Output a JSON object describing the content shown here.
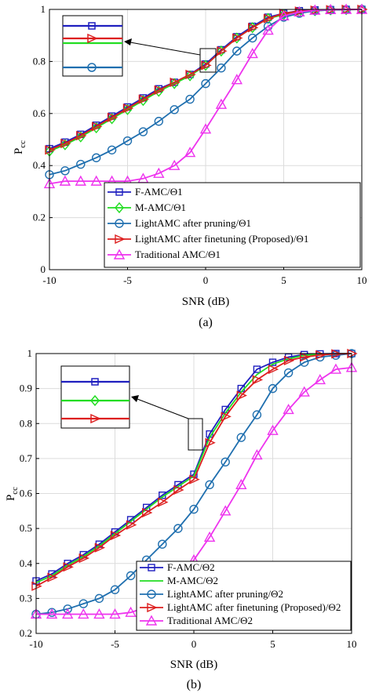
{
  "chart_data": [
    {
      "type": "line",
      "caption": "(a)",
      "xlabel": "SNR (dB)",
      "ylabel": "P",
      "ylabel_sub": "cc",
      "xlim": [
        -10,
        10
      ],
      "ylim": [
        0,
        1
      ],
      "xticks": [
        "-10",
        "-5",
        "0",
        "5",
        "10"
      ],
      "yticks": [
        "0",
        "0.2",
        "0.4",
        "0.6",
        "0.8",
        "1"
      ],
      "grid": true,
      "legend_position": "bottom-right",
      "x": [
        -10,
        -9,
        -8,
        -7,
        -6,
        -5,
        -4,
        -3,
        -2,
        -1,
        0,
        1,
        2,
        3,
        4,
        5,
        6,
        7,
        8,
        9,
        10
      ],
      "series": [
        {
          "name": "F-AMC/Θ1",
          "color": "#1f1fbf",
          "marker": "square",
          "values": [
            0.465,
            0.49,
            0.52,
            0.555,
            0.59,
            0.625,
            0.66,
            0.695,
            0.72,
            0.75,
            0.79,
            0.845,
            0.895,
            0.935,
            0.97,
            0.985,
            0.995,
            0.998,
            0.999,
            1.0,
            1.0
          ]
        },
        {
          "name": "M-AMC/Θ1",
          "color": "#22dd22",
          "marker": "diamond",
          "values": [
            0.455,
            0.48,
            0.51,
            0.545,
            0.58,
            0.615,
            0.65,
            0.685,
            0.715,
            0.745,
            0.785,
            0.84,
            0.89,
            0.93,
            0.965,
            0.98,
            0.99,
            0.995,
            0.998,
            0.999,
            1.0
          ]
        },
        {
          "name": "LightAMC after pruning/Θ1",
          "color": "#1f6faf",
          "marker": "circle",
          "values": [
            0.365,
            0.38,
            0.405,
            0.43,
            0.46,
            0.495,
            0.53,
            0.57,
            0.615,
            0.655,
            0.715,
            0.775,
            0.84,
            0.89,
            0.935,
            0.97,
            0.985,
            0.995,
            0.998,
            0.999,
            1.0
          ]
        },
        {
          "name": "LightAMC after finetuning (Proposed)/Θ1",
          "color": "#dd1f1f",
          "marker": "triangle-right",
          "values": [
            0.46,
            0.485,
            0.515,
            0.55,
            0.585,
            0.62,
            0.655,
            0.69,
            0.72,
            0.75,
            0.785,
            0.84,
            0.89,
            0.93,
            0.965,
            0.985,
            0.993,
            0.997,
            0.999,
            1.0,
            1.0
          ]
        },
        {
          "name": "Traditional AMC/Θ1",
          "color": "#ee33ee",
          "marker": "triangle-up",
          "values": [
            0.33,
            0.34,
            0.34,
            0.34,
            0.34,
            0.34,
            0.35,
            0.37,
            0.4,
            0.45,
            0.54,
            0.635,
            0.73,
            0.83,
            0.92,
            0.975,
            0.99,
            0.997,
            0.999,
            1.0,
            1.0
          ]
        }
      ]
    },
    {
      "type": "line",
      "caption": "(b)",
      "xlabel": "SNR (dB)",
      "ylabel": "P",
      "ylabel_sub": "cc",
      "xlim": [
        -10,
        10
      ],
      "ylim": [
        0.2,
        1
      ],
      "xticks": [
        "-10",
        "-5",
        "0",
        "5",
        "10"
      ],
      "yticks": [
        "0.2",
        "0.3",
        "0.4",
        "0.5",
        "0.6",
        "0.7",
        "0.8",
        "0.9",
        "1"
      ],
      "grid": true,
      "legend_position": "bottom-right",
      "x": [
        -10,
        -9,
        -8,
        -7,
        -6,
        -5,
        -4,
        -3,
        -2,
        -1,
        0,
        1,
        2,
        3,
        4,
        5,
        6,
        7,
        8,
        9,
        10
      ],
      "series": [
        {
          "name": "F-AMC/Θ2",
          "color": "#1f1fbf",
          "marker": "square",
          "values": [
            0.35,
            0.37,
            0.4,
            0.425,
            0.455,
            0.49,
            0.525,
            0.56,
            0.595,
            0.625,
            0.655,
            0.77,
            0.84,
            0.9,
            0.955,
            0.975,
            0.99,
            0.997,
            0.999,
            1.0,
            1.0
          ]
        },
        {
          "name": "M-AMC/Θ2",
          "color": "#22dd22",
          "marker": "none",
          "values": [
            0.345,
            0.365,
            0.395,
            0.42,
            0.45,
            0.485,
            0.52,
            0.555,
            0.59,
            0.62,
            0.65,
            0.76,
            0.83,
            0.89,
            0.94,
            0.97,
            0.985,
            0.995,
            0.998,
            0.999,
            1.0
          ]
        },
        {
          "name": "LightAMC after pruning/Θ2",
          "color": "#1f6faf",
          "marker": "circle",
          "values": [
            0.255,
            0.26,
            0.27,
            0.285,
            0.3,
            0.325,
            0.365,
            0.41,
            0.455,
            0.5,
            0.555,
            0.625,
            0.69,
            0.76,
            0.825,
            0.9,
            0.945,
            0.975,
            0.99,
            0.995,
            1.0
          ]
        },
        {
          "name": "LightAMC after finetuning (Proposed)/Θ2",
          "color": "#dd1f1f",
          "marker": "triangle-right",
          "values": [
            0.335,
            0.36,
            0.39,
            0.415,
            0.445,
            0.48,
            0.51,
            0.545,
            0.575,
            0.61,
            0.64,
            0.745,
            0.82,
            0.88,
            0.925,
            0.955,
            0.98,
            0.99,
            0.996,
            0.999,
            1.0
          ]
        },
        {
          "name": "Traditional AMC/Θ2",
          "color": "#ee33ee",
          "marker": "triangle-up",
          "values": [
            0.255,
            0.255,
            0.255,
            0.255,
            0.255,
            0.255,
            0.26,
            0.275,
            0.295,
            0.34,
            0.41,
            0.475,
            0.55,
            0.625,
            0.71,
            0.78,
            0.84,
            0.89,
            0.925,
            0.955,
            0.96
          ]
        }
      ]
    }
  ]
}
